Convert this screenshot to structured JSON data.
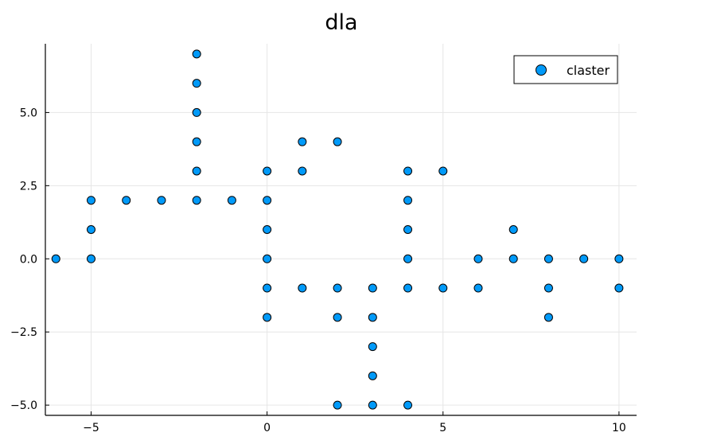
{
  "chart_data": {
    "type": "scatter",
    "title": "dla",
    "xlabel": "",
    "ylabel": "",
    "xlim": [
      -6.3,
      10.5
    ],
    "ylim": [
      -5.35,
      7.35
    ],
    "xticks": [
      -5,
      0,
      5,
      10
    ],
    "xtick_labels": [
      "−5",
      "0",
      "5",
      "10"
    ],
    "yticks": [
      -5,
      -2.5,
      0,
      2.5,
      5
    ],
    "ytick_labels": [
      "−5.0",
      "−2.5",
      "0.0",
      "2.5",
      "5.0"
    ],
    "grid": true,
    "legend_position": "top-right",
    "series": [
      {
        "name": "claster",
        "color": "#009af9",
        "marker": "circle",
        "points": [
          {
            "x": -6,
            "y": 0
          },
          {
            "x": -5,
            "y": 0
          },
          {
            "x": -5,
            "y": 1
          },
          {
            "x": -5,
            "y": 2
          },
          {
            "x": -4,
            "y": 2
          },
          {
            "x": -3,
            "y": 2
          },
          {
            "x": -2,
            "y": 2
          },
          {
            "x": -2,
            "y": 3
          },
          {
            "x": -2,
            "y": 4
          },
          {
            "x": -2,
            "y": 5
          },
          {
            "x": -2,
            "y": 6
          },
          {
            "x": -2,
            "y": 7
          },
          {
            "x": -1,
            "y": 2
          },
          {
            "x": 0,
            "y": 3
          },
          {
            "x": 0,
            "y": 2
          },
          {
            "x": 0,
            "y": 1
          },
          {
            "x": 0,
            "y": 0
          },
          {
            "x": 0,
            "y": -1
          },
          {
            "x": 0,
            "y": -2
          },
          {
            "x": 1,
            "y": 3
          },
          {
            "x": 1,
            "y": 4
          },
          {
            "x": 2,
            "y": 4
          },
          {
            "x": 1,
            "y": -1
          },
          {
            "x": 2,
            "y": -1
          },
          {
            "x": 2,
            "y": -2
          },
          {
            "x": 2,
            "y": -5
          },
          {
            "x": 3,
            "y": -1
          },
          {
            "x": 3,
            "y": -2
          },
          {
            "x": 3,
            "y": -3
          },
          {
            "x": 3,
            "y": -4
          },
          {
            "x": 3,
            "y": -5
          },
          {
            "x": 4,
            "y": -5
          },
          {
            "x": 4,
            "y": -1
          },
          {
            "x": 4,
            "y": 0
          },
          {
            "x": 4,
            "y": 1
          },
          {
            "x": 4,
            "y": 2
          },
          {
            "x": 4,
            "y": 3
          },
          {
            "x": 5,
            "y": 3
          },
          {
            "x": 5,
            "y": -1
          },
          {
            "x": 6,
            "y": -1
          },
          {
            "x": 6,
            "y": 0
          },
          {
            "x": 7,
            "y": 0
          },
          {
            "x": 7,
            "y": 1
          },
          {
            "x": 8,
            "y": 0
          },
          {
            "x": 8,
            "y": -1
          },
          {
            "x": 8,
            "y": -2
          },
          {
            "x": 9,
            "y": 0
          },
          {
            "x": 10,
            "y": 0
          },
          {
            "x": 10,
            "y": -1
          }
        ]
      }
    ]
  }
}
